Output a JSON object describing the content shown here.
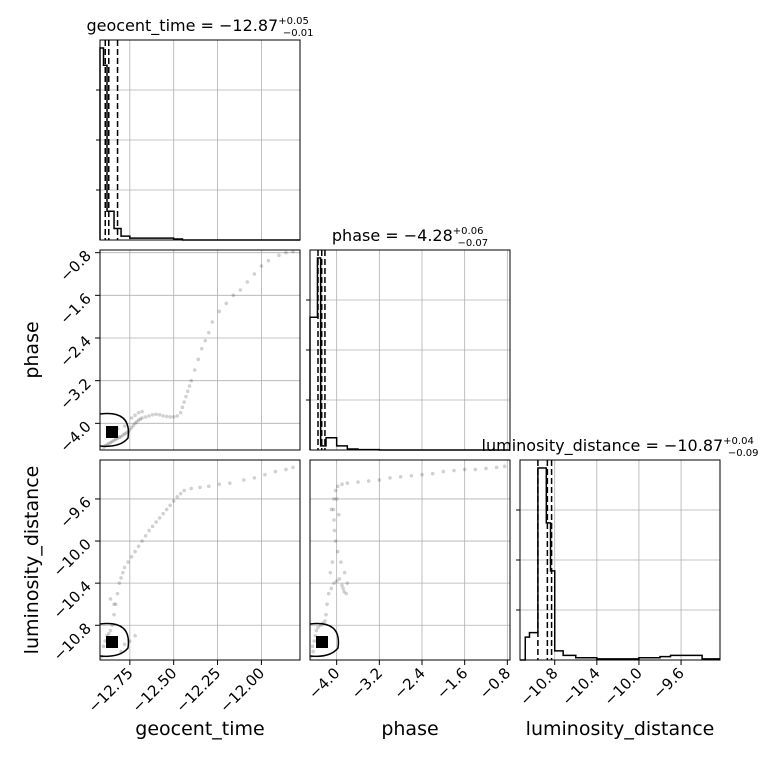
{
  "chart_data": {
    "type": "corner",
    "parameters": [
      "geocent_time",
      "phase",
      "luminosity_distance"
    ],
    "axis_labels": {
      "geocent_time": "geocent_time",
      "phase": "phase",
      "luminosity_distance": "luminosity_distance"
    },
    "titles": {
      "geocent_time": {
        "prefix": "geocent_time = ",
        "median": "−12.87",
        "plus": "+0.05",
        "minus": "−0.01"
      },
      "phase": {
        "prefix": "phase = ",
        "median": "−4.28",
        "plus": "+0.06",
        "minus": "−0.07"
      },
      "luminosity_distance": {
        "prefix": "luminosity_distance = ",
        "median": "−10.87",
        "plus": "+0.04",
        "minus": "−0.09"
      }
    },
    "ranges": {
      "geocent_time": [
        -12.92,
        -11.78
      ],
      "phase": [
        -4.5,
        -0.75
      ],
      "luminosity_distance": [
        -11.13,
        -9.23
      ]
    },
    "ticks": {
      "geocent_time": {
        "values": [
          -12.75,
          -12.5,
          -12.25,
          -12.0
        ],
        "labels": [
          "−12.75",
          "−12.50",
          "−12.25",
          "−12.00"
        ]
      },
      "phase": {
        "values": [
          -4.0,
          -3.2,
          -2.4,
          -1.6,
          -0.8
        ],
        "labels": [
          "−4.0",
          "−3.2",
          "−2.4",
          "−1.6",
          "−0.8"
        ]
      },
      "luminosity_distance": {
        "values": [
          -10.8,
          -10.4,
          -10.0,
          -9.6
        ],
        "labels": [
          "−10.8",
          "−10.4",
          "−10.0",
          "−9.6"
        ]
      }
    },
    "marginals": {
      "geocent_time": {
        "edges": [
          -12.92,
          -12.9,
          -12.88,
          -12.86,
          -12.84,
          -12.82,
          -12.8,
          -12.75,
          -12.7,
          -12.65,
          -12.6,
          -12.55,
          -12.5,
          -12.45,
          -11.78
        ],
        "counts": [
          100,
          91,
          15,
          15,
          6,
          6,
          2,
          1,
          1,
          1,
          1,
          1,
          0.5,
          0
        ],
        "quantiles": [
          -12.89,
          -12.87,
          -12.82
        ]
      },
      "phase": {
        "edges": [
          -4.5,
          -4.42,
          -4.36,
          -4.3,
          -4.2,
          -4.0,
          -3.8,
          -3.6,
          -3.2,
          -0.75
        ],
        "counts": [
          65,
          65,
          94,
          2,
          6,
          2,
          0.5,
          0.2,
          0
        ],
        "quantiles": [
          -4.35,
          -4.28,
          -4.22
        ]
      },
      "luminosity_distance": {
        "edges": [
          -11.13,
          -11.08,
          -11.04,
          -11.0,
          -10.96,
          -10.91,
          -10.88,
          -10.84,
          -10.8,
          -10.72,
          -10.6,
          -10.4,
          -10.2,
          -10.0,
          -9.8,
          -9.7,
          -9.4,
          -9.23
        ],
        "counts": [
          0,
          10,
          12,
          12,
          84,
          84,
          60,
          39,
          4,
          2,
          1,
          0.5,
          0.5,
          1,
          1.5,
          2,
          0.5
        ],
        "quantiles": [
          -10.96,
          -10.87,
          -10.83
        ]
      }
    },
    "scatter_phase_vs_geocent_time": [
      [
        -12.9,
        -4.45
      ],
      [
        -12.89,
        -4.42
      ],
      [
        -12.88,
        -4.4
      ],
      [
        -12.87,
        -4.38
      ],
      [
        -12.86,
        -4.36
      ],
      [
        -12.85,
        -4.34
      ],
      [
        -12.84,
        -4.32
      ],
      [
        -12.83,
        -4.3
      ],
      [
        -12.82,
        -4.28
      ],
      [
        -12.81,
        -4.26
      ],
      [
        -12.8,
        -4.25
      ],
      [
        -12.79,
        -4.22
      ],
      [
        -12.78,
        -4.2
      ],
      [
        -12.77,
        -4.18
      ],
      [
        -12.76,
        -4.16
      ],
      [
        -12.75,
        -4.12
      ],
      [
        -12.74,
        -4.08
      ],
      [
        -12.73,
        -4.04
      ],
      [
        -12.72,
        -4.0
      ],
      [
        -12.71,
        -3.97
      ],
      [
        -12.7,
        -3.94
      ],
      [
        -12.69,
        -3.92
      ],
      [
        -12.68,
        -3.9
      ],
      [
        -12.66,
        -3.88
      ],
      [
        -12.64,
        -3.86
      ],
      [
        -12.62,
        -3.84
      ],
      [
        -12.6,
        -3.83
      ],
      [
        -12.58,
        -3.84
      ],
      [
        -12.56,
        -3.86
      ],
      [
        -12.54,
        -3.87
      ],
      [
        -12.52,
        -3.88
      ],
      [
        -12.5,
        -3.88
      ],
      [
        -12.48,
        -3.86
      ],
      [
        -12.46,
        -3.8
      ],
      [
        -12.45,
        -3.7
      ],
      [
        -12.44,
        -3.6
      ],
      [
        -12.43,
        -3.5
      ],
      [
        -12.42,
        -3.4
      ],
      [
        -12.41,
        -3.3
      ],
      [
        -12.4,
        -3.2
      ],
      [
        -12.38,
        -3.0
      ],
      [
        -12.36,
        -2.8
      ],
      [
        -12.34,
        -2.6
      ],
      [
        -12.32,
        -2.45
      ],
      [
        -12.3,
        -2.3
      ],
      [
        -12.28,
        -2.1
      ],
      [
        -12.24,
        -1.9
      ],
      [
        -12.2,
        -1.75
      ],
      [
        -12.16,
        -1.6
      ],
      [
        -12.12,
        -1.5
      ],
      [
        -12.08,
        -1.35
      ],
      [
        -12.04,
        -1.2
      ],
      [
        -12.0,
        -1.05
      ],
      [
        -11.96,
        -0.95
      ],
      [
        -11.9,
        -0.85
      ],
      [
        -11.86,
        -0.8
      ],
      [
        -11.82,
        -0.78
      ],
      [
        -12.72,
        -3.85
      ],
      [
        -12.7,
        -3.8
      ],
      [
        -12.74,
        -3.9
      ],
      [
        -12.78,
        -4.05
      ],
      [
        -12.82,
        -4.1
      ],
      [
        -12.86,
        -4.2
      ],
      [
        -12.68,
        -3.78
      ]
    ],
    "scatter_luminosity_distance_vs_geocent_time": [
      [
        -12.91,
        -11.1
      ],
      [
        -12.9,
        -11.0
      ],
      [
        -12.89,
        -10.95
      ],
      [
        -12.88,
        -10.9
      ],
      [
        -12.87,
        -10.88
      ],
      [
        -12.86,
        -10.85
      ],
      [
        -12.85,
        -10.8
      ],
      [
        -12.84,
        -10.7
      ],
      [
        -12.83,
        -10.6
      ],
      [
        -12.82,
        -10.5
      ],
      [
        -12.81,
        -10.4
      ],
      [
        -12.8,
        -10.35
      ],
      [
        -12.79,
        -10.3
      ],
      [
        -12.78,
        -10.25
      ],
      [
        -12.76,
        -10.2
      ],
      [
        -12.74,
        -10.15
      ],
      [
        -12.72,
        -10.1
      ],
      [
        -12.7,
        -10.05
      ],
      [
        -12.68,
        -10.0
      ],
      [
        -12.66,
        -9.95
      ],
      [
        -12.64,
        -9.9
      ],
      [
        -12.62,
        -9.86
      ],
      [
        -12.6,
        -9.82
      ],
      [
        -12.58,
        -9.78
      ],
      [
        -12.56,
        -9.74
      ],
      [
        -12.54,
        -9.7
      ],
      [
        -12.52,
        -9.66
      ],
      [
        -12.5,
        -9.62
      ],
      [
        -12.48,
        -9.58
      ],
      [
        -12.46,
        -9.55
      ],
      [
        -12.44,
        -9.52
      ],
      [
        -12.4,
        -9.5
      ],
      [
        -12.35,
        -9.49
      ],
      [
        -12.3,
        -9.48
      ],
      [
        -12.24,
        -9.46
      ],
      [
        -12.18,
        -9.45
      ],
      [
        -12.1,
        -9.42
      ],
      [
        -12.04,
        -9.4
      ],
      [
        -11.98,
        -9.37
      ],
      [
        -11.92,
        -9.34
      ],
      [
        -11.86,
        -9.32
      ],
      [
        -11.82,
        -9.3
      ],
      [
        -12.78,
        -10.98
      ],
      [
        -12.75,
        -10.95
      ],
      [
        -12.8,
        -11.05
      ],
      [
        -12.84,
        -10.6
      ],
      [
        -12.86,
        -10.55
      ],
      [
        -12.72,
        -10.9
      ]
    ],
    "scatter_luminosity_distance_vs_phase": [
      [
        -4.48,
        -11.1
      ],
      [
        -4.45,
        -11.0
      ],
      [
        -4.42,
        -10.95
      ],
      [
        -4.4,
        -10.9
      ],
      [
        -4.38,
        -10.85
      ],
      [
        -4.35,
        -10.82
      ],
      [
        -4.3,
        -10.8
      ],
      [
        -4.26,
        -10.78
      ],
      [
        -4.22,
        -10.76
      ],
      [
        -4.2,
        -10.7
      ],
      [
        -4.18,
        -10.6
      ],
      [
        -4.15,
        -10.5
      ],
      [
        -4.1,
        -10.45
      ],
      [
        -4.05,
        -10.4
      ],
      [
        -4.0,
        -10.38
      ],
      [
        -3.95,
        -10.36
      ],
      [
        -3.9,
        -10.42
      ],
      [
        -3.86,
        -10.48
      ],
      [
        -3.82,
        -10.5
      ],
      [
        -3.8,
        -10.4
      ],
      [
        -3.85,
        -10.3
      ],
      [
        -3.92,
        -10.2
      ],
      [
        -3.98,
        -10.1
      ],
      [
        -4.02,
        -10.0
      ],
      [
        -4.04,
        -9.9
      ],
      [
        -4.05,
        -9.8
      ],
      [
        -4.06,
        -9.7
      ],
      [
        -4.05,
        -9.6
      ],
      [
        -4.02,
        -9.52
      ],
      [
        -3.98,
        -9.48
      ],
      [
        -3.9,
        -9.46
      ],
      [
        -3.8,
        -9.45
      ],
      [
        -3.6,
        -9.44
      ],
      [
        -3.4,
        -9.43
      ],
      [
        -3.2,
        -9.42
      ],
      [
        -3.0,
        -9.4
      ],
      [
        -2.8,
        -9.39
      ],
      [
        -2.6,
        -9.38
      ],
      [
        -2.4,
        -9.37
      ],
      [
        -2.2,
        -9.36
      ],
      [
        -2.0,
        -9.34
      ],
      [
        -1.8,
        -9.33
      ],
      [
        -1.6,
        -9.32
      ],
      [
        -1.4,
        -9.32
      ],
      [
        -1.2,
        -9.31
      ],
      [
        -1.0,
        -9.3
      ],
      [
        -0.85,
        -9.29
      ],
      [
        -4.1,
        -9.7
      ],
      [
        -4.0,
        -9.6
      ],
      [
        -3.96,
        -9.75
      ],
      [
        -4.08,
        -10.2
      ],
      [
        -4.12,
        -10.3
      ],
      [
        -3.88,
        -10.45
      ],
      [
        -4.3,
        -10.95
      ],
      [
        -4.44,
        -11.05
      ]
    ]
  }
}
